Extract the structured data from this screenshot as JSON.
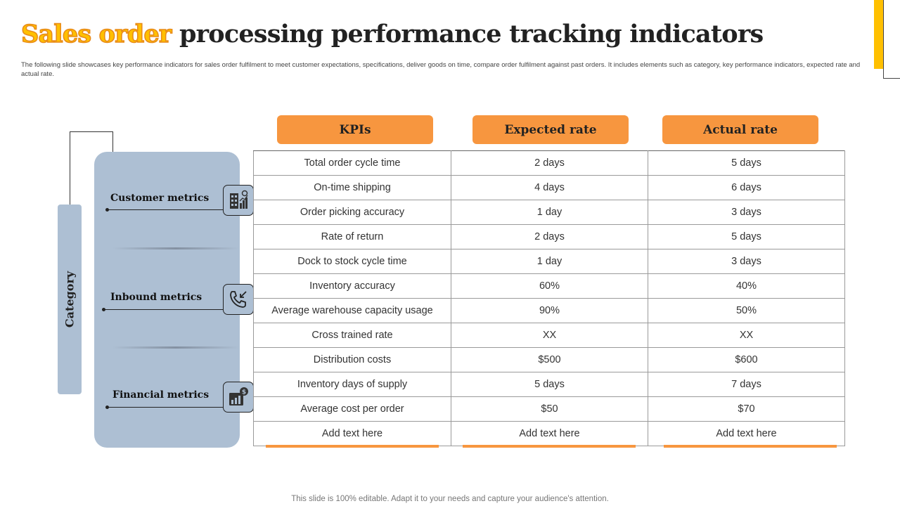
{
  "title": {
    "accent": "Sales order",
    "rest": " processing performance tracking indicators"
  },
  "subtitle": "The following slide showcases key performance indicators for sales order fulfilment to meet customer expectations, specifications, deliver goods on time, compare order fulfilment against past orders. It includes elements such as category, key performance indicators, expected rate and actual rate.",
  "category_label": "Category",
  "metrics": [
    {
      "label": "Customer metrics",
      "icon": "building-chart-icon"
    },
    {
      "label": "Inbound metrics",
      "icon": "phone-incoming-icon"
    },
    {
      "label": "Financial metrics",
      "icon": "finance-chart-icon"
    }
  ],
  "headers": [
    "KPIs",
    "Expected rate",
    "Actual rate"
  ],
  "rows": [
    [
      "Total order cycle time",
      "2 days",
      "5 days"
    ],
    [
      "On-time shipping",
      "4 days",
      "6 days"
    ],
    [
      "Order picking accuracy",
      "1 day",
      "3 days"
    ],
    [
      "Rate of return",
      "2 days",
      "5 days"
    ],
    [
      "Dock to stock cycle time",
      "1 day",
      "3 days"
    ],
    [
      "Inventory accuracy",
      "60%",
      "40%"
    ],
    [
      "Average warehouse capacity usage",
      "90%",
      "50%"
    ],
    [
      "Cross trained rate",
      "XX",
      "XX"
    ],
    [
      "Distribution costs",
      "$500",
      "$600"
    ],
    [
      "Inventory days of supply",
      "5 days",
      "7 days"
    ],
    [
      "Average cost per order",
      "$50",
      "$70"
    ],
    [
      "Add text here",
      "Add text here",
      "Add text here"
    ]
  ],
  "footer": "This slide is 100% editable. Adapt it to your needs and capture your audience's attention.",
  "colors": {
    "accent_yellow": "#FFC000",
    "header_orange": "#F7963F",
    "panel_blue": "#ADBFD3"
  }
}
